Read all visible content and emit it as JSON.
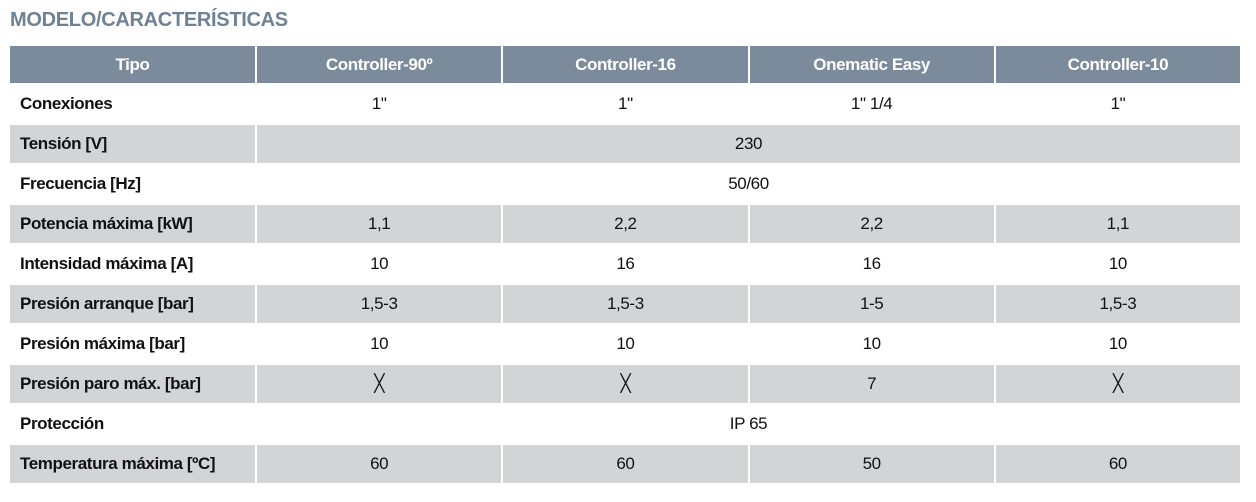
{
  "title": "MODELO/CARACTERÍSTICAS",
  "table": {
    "header": [
      "Tipo",
      "Controller-90º",
      "Controller-16",
      "Onematic Easy",
      "Controller-10"
    ],
    "rows": [
      {
        "label": "Conexiones",
        "values": [
          "1\"",
          "1\"",
          "1\" 1/4",
          "1\""
        ]
      },
      {
        "label": "Tensión [V]",
        "values": [
          "230"
        ]
      },
      {
        "label": "Frecuencia [Hz]",
        "values": [
          "50/60"
        ]
      },
      {
        "label": "Potencia máxima [kW]",
        "values": [
          "1,1",
          "2,2",
          "2,2",
          "1,1"
        ]
      },
      {
        "label": "Intensidad máxima [A]",
        "values": [
          "10",
          "16",
          "16",
          "10"
        ]
      },
      {
        "label": "Presión arranque [bar]",
        "values": [
          "1,5-3",
          "1,5-3",
          "1-5",
          "1,5-3"
        ]
      },
      {
        "label": "Presión máxima [bar]",
        "values": [
          "10",
          "10",
          "10",
          "10"
        ]
      },
      {
        "label": "Presión paro máx. [bar]",
        "values": [
          "╳",
          "╳",
          "7",
          "╳"
        ]
      },
      {
        "label": "Protección",
        "values": [
          "IP 65"
        ]
      },
      {
        "label": "Temperatura máxima [ºC]",
        "values": [
          "60",
          "60",
          "50",
          "60"
        ]
      }
    ]
  }
}
